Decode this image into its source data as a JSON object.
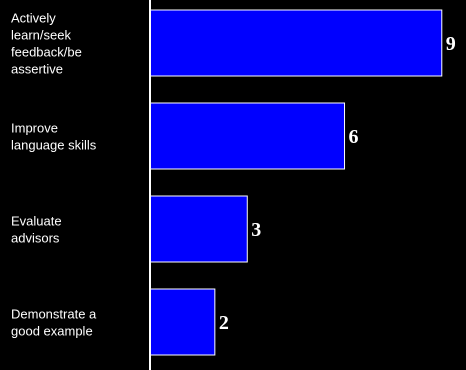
{
  "chart_data": {
    "type": "bar",
    "orientation": "horizontal",
    "categories": [
      [
        "Actively",
        "learn/seek",
        "feedback/be",
        "assertive"
      ],
      [
        "Improve",
        "language skills"
      ],
      [
        "Evaluate",
        "advisors"
      ],
      [
        "Demonstrate a",
        "good example"
      ]
    ],
    "values": [
      9,
      6,
      3,
      2
    ],
    "data_labels": [
      "9",
      "6",
      "3",
      "2"
    ],
    "xlim": [
      0,
      9.5
    ],
    "grid": false,
    "legend": "none",
    "colors": {
      "background": "#000000",
      "bar_fill": "#0000ff",
      "bar_stroke": "#ffffff",
      "axis": "#ffffff",
      "text": "#ffffff"
    }
  }
}
